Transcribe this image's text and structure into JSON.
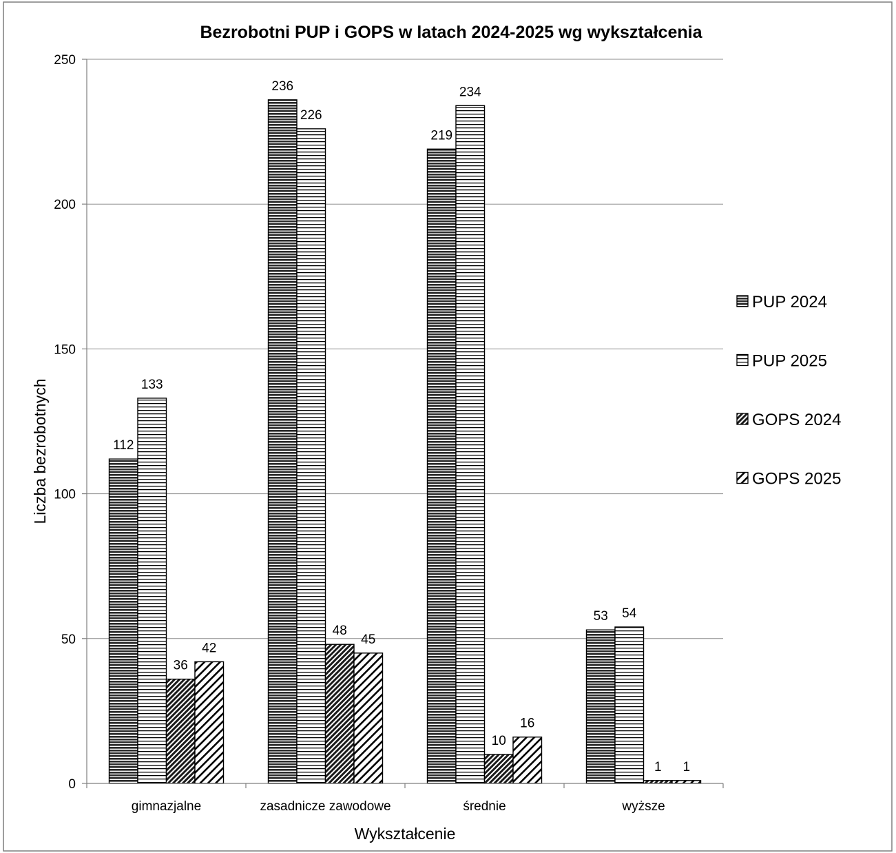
{
  "chart_data": {
    "type": "bar",
    "title": "Bezrobotni PUP i GOPS w latach 2024-2025  wg wykształcenia",
    "xlabel": "Wykształcenie",
    "ylabel": "Liczba bezrobotnych",
    "ylim": [
      0,
      250
    ],
    "yticks": [
      0,
      50,
      100,
      150,
      200,
      250
    ],
    "grid": true,
    "legend_position": "right",
    "categories": [
      "gimnazjalne",
      "zasadnicze zawodowe",
      "średnie",
      "wyższe"
    ],
    "series": [
      {
        "name": "PUP 2024",
        "values": [
          112,
          236,
          219,
          53
        ],
        "pattern": "dense-horizontal"
      },
      {
        "name": "PUP 2025",
        "values": [
          133,
          226,
          234,
          54
        ],
        "pattern": "horizontal"
      },
      {
        "name": "GOPS 2024",
        "values": [
          36,
          48,
          10,
          1
        ],
        "pattern": "dense-diagonal"
      },
      {
        "name": "GOPS 2025",
        "values": [
          42,
          45,
          16,
          1
        ],
        "pattern": "diagonal"
      }
    ]
  }
}
